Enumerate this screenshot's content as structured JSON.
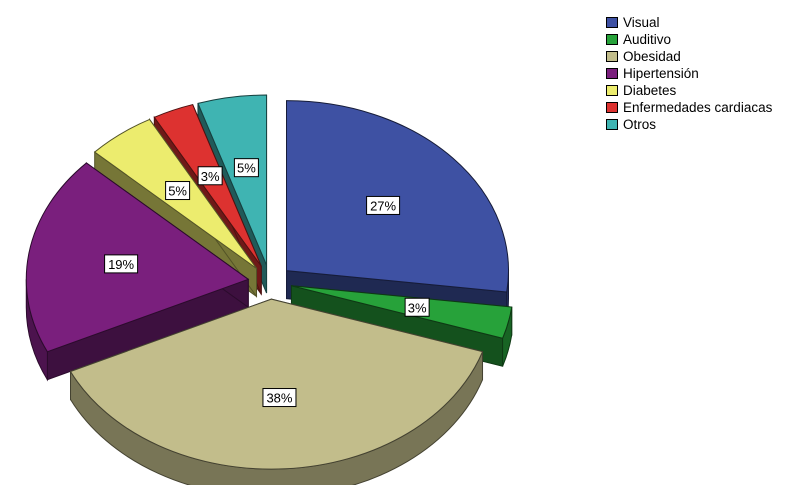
{
  "chart_data": {
    "type": "pie",
    "title": "",
    "categories": [
      "Visual",
      "Auditivo",
      "Obesidad",
      "Hipertensión",
      "Diabetes",
      "Enfermedades cardiacas",
      "Otros"
    ],
    "values": [
      27,
      3,
      38,
      19,
      5,
      3,
      5
    ],
    "value_labels": [
      "27%",
      "3%",
      "38%",
      "19%",
      "5%",
      "3%",
      "5%"
    ],
    "colors": [
      "#3e51a3",
      "#27a23a",
      "#c2bd8b",
      "#7a1f7d",
      "#ecec6e",
      "#dd3230",
      "#3fb4b2"
    ],
    "style": "3d-exploded",
    "legend_position": "top-right"
  }
}
